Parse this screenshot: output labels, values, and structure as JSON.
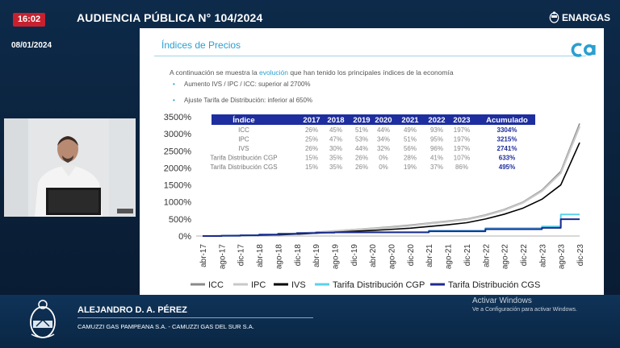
{
  "header": {
    "clock": "16:02",
    "title": "AUDIENCIA PÚBLICA N° 104/2024",
    "date": "08/01/2024",
    "brand": "ENARGAS"
  },
  "slide": {
    "title": "Índices de Precios",
    "intro_prefix": "A continuación se muestra la ",
    "intro_evolucion": "evolución",
    "intro_middle": " que han tenido los ",
    "intro_bold": "principales índices",
    "intro_suffix": " de la economía",
    "bullets": [
      "Aumento IVS / IPC / ICC: superior al 2700%",
      "Ajuste Tarifa de Distribución: inferior al 650%"
    ]
  },
  "table": {
    "headers": [
      "Índice",
      "2017",
      "2018",
      "2019",
      "2020",
      "2021",
      "2022",
      "2023",
      "Acumulado"
    ],
    "rows": [
      {
        "label": "ICC",
        "values": [
          "26%",
          "45%",
          "51%",
          "44%",
          "49%",
          "93%",
          "197%"
        ],
        "acc": "3304%"
      },
      {
        "label": "IPC",
        "values": [
          "25%",
          "47%",
          "53%",
          "34%",
          "51%",
          "95%",
          "197%"
        ],
        "acc": "3215%"
      },
      {
        "label": "IVS",
        "values": [
          "26%",
          "30%",
          "44%",
          "32%",
          "56%",
          "96%",
          "197%"
        ],
        "acc": "2741%"
      },
      {
        "label": "Tarifa Distribución CGP",
        "values": [
          "15%",
          "35%",
          "26%",
          "0%",
          "28%",
          "41%",
          "107%"
        ],
        "acc": "633%"
      },
      {
        "label": "Tarifa Distribución CGS",
        "values": [
          "15%",
          "35%",
          "26%",
          "0%",
          "19%",
          "37%",
          "86%"
        ],
        "acc": "495%"
      }
    ]
  },
  "chart_data": {
    "type": "line",
    "x": [
      "abr-17",
      "ago-17",
      "dic-17",
      "abr-18",
      "ago-18",
      "dic-18",
      "abr-19",
      "ago-19",
      "dic-19",
      "abr-20",
      "ago-20",
      "dic-20",
      "abr-21",
      "ago-21",
      "dic-21",
      "abr-22",
      "ago-22",
      "dic-22",
      "abr-23",
      "ago-23",
      "dic-23"
    ],
    "ylim": [
      0,
      3500
    ],
    "yticks": [
      "0%",
      "500%",
      "1000%",
      "1500%",
      "2000%",
      "2500%",
      "3000%",
      "3500%"
    ],
    "series": [
      {
        "name": "ICC",
        "color": "#8a8a8a",
        "values": [
          0,
          8,
          18,
          30,
          50,
          80,
          110,
          150,
          190,
          230,
          270,
          320,
          380,
          440,
          500,
          620,
          780,
          1000,
          1350,
          1900,
          3304
        ]
      },
      {
        "name": "IPC",
        "color": "#c8c8c8",
        "values": [
          0,
          8,
          17,
          28,
          48,
          78,
          108,
          148,
          185,
          215,
          250,
          300,
          360,
          420,
          480,
          600,
          760,
          980,
          1320,
          1850,
          3215
        ]
      },
      {
        "name": "IVS",
        "color": "#000000",
        "values": [
          0,
          6,
          14,
          22,
          35,
          55,
          80,
          110,
          140,
          165,
          195,
          230,
          280,
          330,
          390,
          500,
          640,
          820,
          1080,
          1500,
          2741
        ]
      },
      {
        "name": "Tarifa Distribución CGP",
        "color": "#5ad2ea",
        "values": [
          0,
          10,
          20,
          40,
          65,
          85,
          100,
          110,
          110,
          110,
          110,
          110,
          160,
          160,
          160,
          230,
          230,
          230,
          280,
          633,
          633
        ]
      },
      {
        "name": "Tarifa Distribución CGS",
        "color": "#1c2a8f",
        "values": [
          0,
          10,
          20,
          40,
          65,
          85,
          100,
          110,
          110,
          110,
          110,
          110,
          140,
          140,
          140,
          200,
          200,
          200,
          240,
          495,
          495
        ]
      }
    ],
    "legend": "bottom"
  },
  "speaker": {
    "name": "ALEJANDRO D. A. PÉREZ",
    "company": "CAMUZZI GAS PAMPEANA S.A. - CAMUZZI GAS DEL SUR S.A."
  },
  "watermark": {
    "line1": "Activar Windows",
    "line2": "Ve a Configuración para activar Windows."
  }
}
